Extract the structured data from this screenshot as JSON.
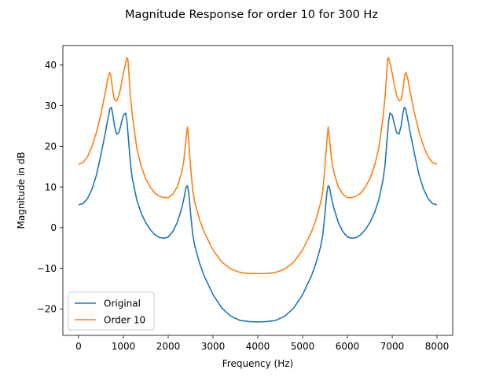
{
  "chart_data": {
    "type": "line",
    "title": "Magnitude Response for order 10 for 300 Hz",
    "xlabel": "Frequency (Hz)",
    "ylabel": "Magnitude in dB",
    "xlim": [
      -350,
      8350
    ],
    "ylim": [
      -26.5,
      44.8
    ],
    "xticks": [
      0,
      1000,
      2000,
      3000,
      4000,
      5000,
      6000,
      7000,
      8000
    ],
    "yticks": [
      -20,
      -10,
      0,
      10,
      20,
      30,
      40
    ],
    "xtick_labels": [
      "0",
      "1000",
      "2000",
      "3000",
      "4000",
      "5000",
      "6000",
      "7000",
      "8000"
    ],
    "ytick_labels": [
      "−20",
      "−10",
      "0",
      "10",
      "20",
      "30",
      "40"
    ],
    "grid": false,
    "legend_position": "lower-left",
    "series": [
      {
        "name": "Original",
        "color": "#1f77b4",
        "x": [
          0,
          100,
          200,
          300,
          400,
          500,
          600,
          650,
          700,
          730,
          760,
          800,
          850,
          900,
          950,
          1000,
          1050,
          1080,
          1100,
          1130,
          1160,
          1200,
          1300,
          1400,
          1500,
          1600,
          1700,
          1800,
          1900,
          2000,
          2100,
          2200,
          2300,
          2350,
          2400,
          2430,
          2460,
          2500,
          2550,
          2600,
          2700,
          2800,
          3000,
          3200,
          3400,
          3600,
          3800,
          4000,
          4200,
          4400,
          4600,
          4800,
          5000,
          5200,
          5300,
          5400,
          5450,
          5500,
          5540,
          5570,
          5600,
          5650,
          5700,
          5800,
          5900,
          6000,
          6100,
          6200,
          6300,
          6400,
          6500,
          6600,
          6700,
          6800,
          6840,
          6870,
          6900,
          6920,
          6950,
          7000,
          7050,
          7100,
          7150,
          7200,
          7240,
          7270,
          7300,
          7350,
          7400,
          7500,
          7600,
          7700,
          7800,
          7900,
          8000
        ],
        "y": [
          5.6,
          5.9,
          7.2,
          9.5,
          13.0,
          18.0,
          23.5,
          26.5,
          29.3,
          29.6,
          28.2,
          25.0,
          23.0,
          23.4,
          25.5,
          27.7,
          28.2,
          26.2,
          23.5,
          19.5,
          15.5,
          12.0,
          6.8,
          3.5,
          1.2,
          -0.5,
          -1.7,
          -2.4,
          -2.6,
          -2.3,
          -1.0,
          1.2,
          4.7,
          7.0,
          10.0,
          10.3,
          8.5,
          3.5,
          -1.8,
          -4.8,
          -8.7,
          -11.8,
          -16.5,
          -19.8,
          -21.8,
          -22.8,
          -23.1,
          -23.2,
          -23.1,
          -22.8,
          -21.8,
          -19.8,
          -16.5,
          -11.8,
          -8.7,
          -4.8,
          -1.8,
          3.5,
          8.5,
          10.3,
          10.0,
          7.0,
          4.7,
          1.2,
          -1.0,
          -2.3,
          -2.6,
          -2.4,
          -1.7,
          -0.5,
          1.2,
          3.5,
          6.8,
          12.0,
          15.5,
          19.5,
          23.5,
          26.2,
          28.2,
          27.7,
          25.5,
          23.4,
          23.0,
          25.0,
          28.2,
          29.6,
          29.3,
          26.5,
          23.5,
          18.0,
          13.0,
          9.5,
          7.2,
          5.9,
          5.6
        ]
      },
      {
        "name": "Order 10",
        "color": "#ff7f0e",
        "x": [
          0,
          100,
          200,
          300,
          400,
          500,
          600,
          650,
          690,
          720,
          760,
          800,
          850,
          900,
          950,
          1000,
          1050,
          1080,
          1100,
          1120,
          1150,
          1200,
          1300,
          1400,
          1500,
          1600,
          1700,
          1800,
          1900,
          2000,
          2100,
          2200,
          2300,
          2350,
          2400,
          2430,
          2460,
          2500,
          2550,
          2600,
          2700,
          2800,
          3000,
          3200,
          3400,
          3600,
          3800,
          4000,
          4200,
          4400,
          4600,
          4800,
          5000,
          5200,
          5300,
          5400,
          5450,
          5500,
          5540,
          5570,
          5600,
          5650,
          5700,
          5800,
          5900,
          6000,
          6100,
          6200,
          6300,
          6400,
          6500,
          6600,
          6700,
          6800,
          6850,
          6880,
          6900,
          6920,
          6950,
          7000,
          7050,
          7100,
          7150,
          7200,
          7240,
          7280,
          7310,
          7350,
          7400,
          7500,
          7600,
          7700,
          7800,
          7900,
          8000
        ],
        "y": [
          15.6,
          16.0,
          17.5,
          20.0,
          23.5,
          28.0,
          33.5,
          36.5,
          38.2,
          37.5,
          34.0,
          31.5,
          31.2,
          32.5,
          35.0,
          38.0,
          40.5,
          41.8,
          41.5,
          38.5,
          33.5,
          27.5,
          19.5,
          15.0,
          12.0,
          10.0,
          8.5,
          7.8,
          7.4,
          7.4,
          8.2,
          10.0,
          13.5,
          16.5,
          22.0,
          24.8,
          21.0,
          15.0,
          9.0,
          6.0,
          2.0,
          -1.0,
          -5.5,
          -8.5,
          -10.2,
          -11.0,
          -11.3,
          -11.3,
          -11.3,
          -11.0,
          -10.2,
          -8.5,
          -5.5,
          -1.0,
          2.0,
          6.0,
          9.0,
          15.0,
          21.0,
          24.8,
          22.0,
          16.5,
          13.5,
          10.0,
          8.2,
          7.4,
          7.4,
          7.8,
          8.5,
          10.0,
          12.0,
          15.0,
          19.5,
          27.5,
          33.5,
          38.5,
          41.5,
          41.8,
          40.5,
          38.0,
          35.0,
          32.5,
          31.2,
          31.5,
          34.0,
          37.5,
          38.2,
          36.5,
          33.5,
          28.0,
          23.5,
          20.0,
          17.5,
          16.0,
          15.6
        ]
      }
    ]
  }
}
